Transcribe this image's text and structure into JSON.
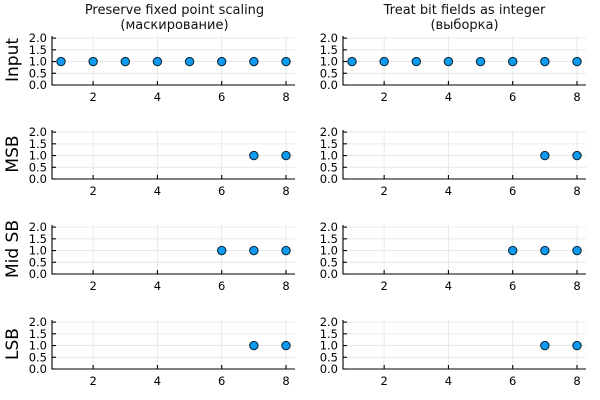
{
  "chart_data": {
    "type": "scatter",
    "col_titles": [
      {
        "line1": "Preserve fixed point scaling",
        "line2": "(маскирование)"
      },
      {
        "line1": "Treat bit fields as integer",
        "line2": "(выборка)"
      }
    ],
    "rows": [
      {
        "label": "Input",
        "series": [
          {
            "x": [
              1,
              2,
              3,
              4,
              5,
              6,
              7,
              8
            ],
            "y": [
              1,
              1,
              1,
              1,
              1,
              1,
              1,
              1
            ]
          },
          {
            "x": [
              1,
              2,
              3,
              4,
              5,
              6,
              7,
              8
            ],
            "y": [
              1,
              1,
              1,
              1,
              1,
              1,
              1,
              1
            ]
          }
        ]
      },
      {
        "label": "MSB",
        "series": [
          {
            "x": [
              7,
              8
            ],
            "y": [
              1,
              1
            ]
          },
          {
            "x": [
              7,
              8
            ],
            "y": [
              1,
              1
            ]
          }
        ]
      },
      {
        "label": "Mid SB",
        "series": [
          {
            "x": [
              6,
              7,
              8
            ],
            "y": [
              1,
              1,
              1
            ]
          },
          {
            "x": [
              6,
              7,
              8
            ],
            "y": [
              1,
              1,
              1
            ]
          }
        ]
      },
      {
        "label": "LSB",
        "series": [
          {
            "x": [
              7,
              8
            ],
            "y": [
              1,
              1
            ]
          },
          {
            "x": [
              7,
              8
            ],
            "y": [
              1,
              1
            ]
          }
        ]
      }
    ],
    "xlim": [
      0.72,
      8.28
    ],
    "ylim": [
      0,
      2.09
    ],
    "xticks": [
      2,
      4,
      6,
      8
    ],
    "yticks": [
      0,
      0.5,
      1,
      1.5,
      2
    ],
    "xtick_labels": [
      "2",
      "4",
      "6",
      "8"
    ],
    "ytick_labels": [
      "0.0",
      "0.5",
      "1.0",
      "1.5",
      "2.0"
    ],
    "grid": true,
    "legend": "none",
    "marker_color": "#0d9bf0",
    "marker_edge_color": "#0b2231",
    "grid_color": "#e6e6e6",
    "axis_color": "#000000",
    "text_color": "#000000"
  }
}
